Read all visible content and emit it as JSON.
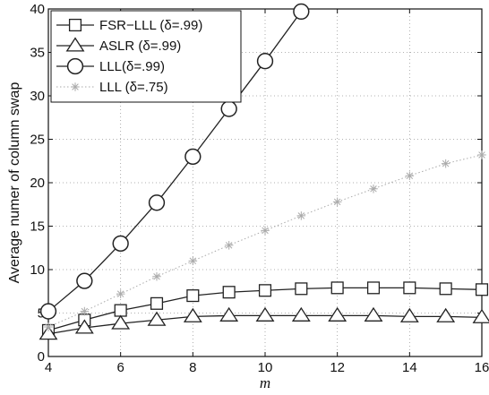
{
  "chart_data": {
    "type": "line",
    "xlabel": "m",
    "ylabel": "Average numer of column swap",
    "xlim": [
      4,
      16
    ],
    "ylim": [
      0,
      40
    ],
    "xticks": [
      4,
      6,
      8,
      10,
      12,
      14,
      16
    ],
    "yticks": [
      0,
      5,
      10,
      15,
      20,
      25,
      30,
      35,
      40
    ],
    "grid": true,
    "legend_position": "top-left",
    "series": [
      {
        "name": "FSR−LLL (δ=.99)",
        "marker": "square",
        "color": "#222222",
        "linestyle": "solid",
        "x": [
          4,
          5,
          6,
          7,
          8,
          9,
          10,
          11,
          12,
          13,
          14,
          15,
          16
        ],
        "y": [
          3.0,
          4.2,
          5.3,
          6.1,
          7.0,
          7.4,
          7.6,
          7.8,
          7.9,
          7.9,
          7.9,
          7.8,
          7.7
        ]
      },
      {
        "name": "ASLR (δ=.99)",
        "marker": "triangle",
        "color": "#222222",
        "linestyle": "solid",
        "x": [
          4,
          5,
          6,
          7,
          8,
          9,
          10,
          11,
          12,
          13,
          14,
          15,
          16
        ],
        "y": [
          2.6,
          3.3,
          3.8,
          4.2,
          4.6,
          4.7,
          4.7,
          4.7,
          4.7,
          4.7,
          4.6,
          4.6,
          4.5
        ]
      },
      {
        "name": "LLL(δ=.99)",
        "marker": "circle",
        "color": "#222222",
        "linestyle": "solid",
        "x": [
          4,
          5,
          6,
          7,
          8,
          9,
          10,
          11
        ],
        "y": [
          5.2,
          8.7,
          13.0,
          17.7,
          23.0,
          28.5,
          34.0,
          39.7
        ]
      },
      {
        "name": "LLL (δ=.75)",
        "marker": "star",
        "color": "#aaaaaa",
        "linestyle": "dotted",
        "x": [
          4,
          5,
          6,
          7,
          8,
          9,
          10,
          11,
          12,
          13,
          14,
          15,
          16
        ],
        "y": [
          3.4,
          5.2,
          7.2,
          9.2,
          11.0,
          12.8,
          14.5,
          16.2,
          17.8,
          19.3,
          20.8,
          22.2,
          23.2
        ]
      }
    ]
  }
}
